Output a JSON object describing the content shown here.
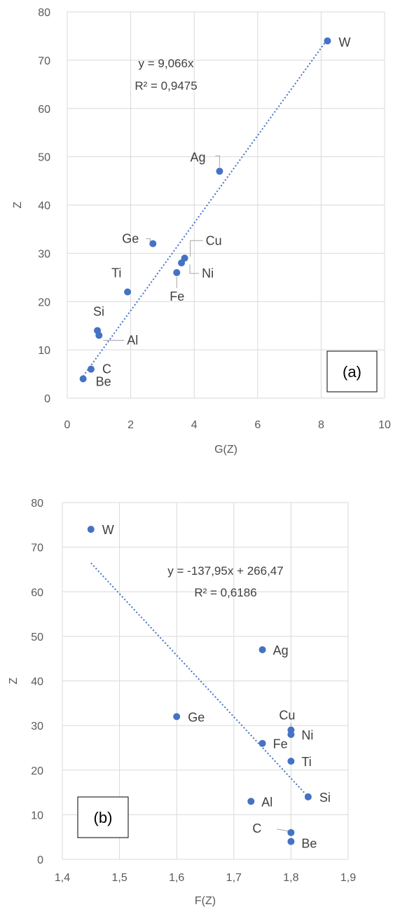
{
  "chart_data": [
    {
      "type": "scatter",
      "panel_label": "(a)",
      "xlabel": "G(Z)",
      "ylabel": "Z",
      "xlim": [
        0,
        10
      ],
      "ylim": [
        0,
        80
      ],
      "xticks": [
        "0",
        "2",
        "4",
        "6",
        "8",
        "10"
      ],
      "yticks": [
        "0",
        "10",
        "20",
        "30",
        "40",
        "50",
        "60",
        "70",
        "80"
      ],
      "grid": true,
      "points": [
        {
          "label": "W",
          "x": 8.2,
          "y": 74
        },
        {
          "label": "Ag",
          "x": 4.8,
          "y": 47
        },
        {
          "label": "Ge",
          "x": 2.7,
          "y": 32
        },
        {
          "label": "Cu",
          "x": 3.7,
          "y": 29
        },
        {
          "label": "Ni",
          "x": 3.6,
          "y": 28
        },
        {
          "label": "Fe",
          "x": 3.45,
          "y": 26
        },
        {
          "label": "Ti",
          "x": 1.9,
          "y": 22
        },
        {
          "label": "Si",
          "x": 0.95,
          "y": 14
        },
        {
          "label": "Al",
          "x": 1.0,
          "y": 13
        },
        {
          "label": "C",
          "x": 0.75,
          "y": 6
        },
        {
          "label": "Be",
          "x": 0.5,
          "y": 4
        }
      ],
      "trendline": {
        "equation": "y = 9,066x",
        "r2": "R² = 0,9475",
        "x_range": [
          0.5,
          8.2
        ]
      },
      "series_color": "#4472C4"
    },
    {
      "type": "scatter",
      "panel_label": "(b)",
      "xlabel": "F(Z)",
      "ylabel": "Z",
      "xlim": [
        1.4,
        1.9
      ],
      "ylim": [
        0,
        80
      ],
      "xticks": [
        "1,4",
        "1,5",
        "1,6",
        "1,7",
        "1,8",
        "1,9"
      ],
      "yticks": [
        "0",
        "10",
        "20",
        "30",
        "40",
        "50",
        "60",
        "70",
        "80"
      ],
      "grid": true,
      "points": [
        {
          "label": "W",
          "x": 1.45,
          "y": 74
        },
        {
          "label": "Ag",
          "x": 1.75,
          "y": 47
        },
        {
          "label": "Ge",
          "x": 1.6,
          "y": 32
        },
        {
          "label": "Cu",
          "x": 1.8,
          "y": 29
        },
        {
          "label": "Ni",
          "x": 1.8,
          "y": 28
        },
        {
          "label": "Fe",
          "x": 1.75,
          "y": 26
        },
        {
          "label": "Ti",
          "x": 1.8,
          "y": 22
        },
        {
          "label": "Si",
          "x": 1.83,
          "y": 14
        },
        {
          "label": "Al",
          "x": 1.73,
          "y": 13
        },
        {
          "label": "C",
          "x": 1.8,
          "y": 6
        },
        {
          "label": "Be",
          "x": 1.8,
          "y": 4
        }
      ],
      "trendline": {
        "equation": "y = -137,95x + 266,47",
        "r2": "R² = 0,6186",
        "x_range": [
          1.45,
          1.83
        ]
      },
      "series_color": "#4472C4"
    }
  ]
}
